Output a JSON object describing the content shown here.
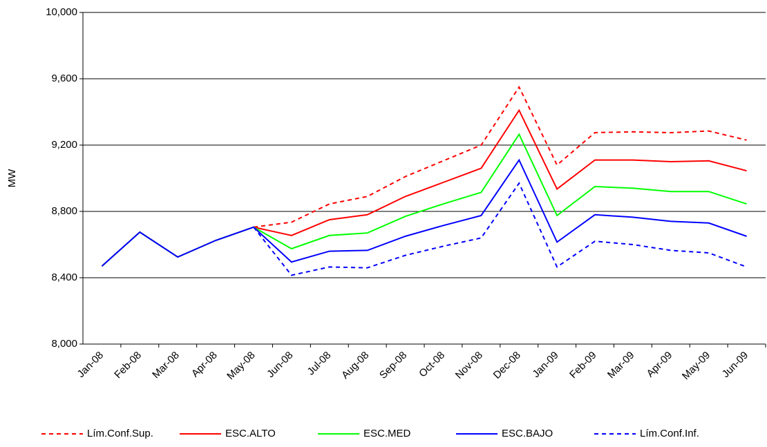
{
  "chart_data": {
    "type": "line",
    "y_label": "MW",
    "categories": [
      "Jan-08",
      "Feb-08",
      "Mar-08",
      "Apr-08",
      "May-08",
      "Jun-08",
      "Jul-08",
      "Aug-08",
      "Sep-08",
      "Oct-08",
      "Nov-08",
      "Dec-08",
      "Jan-09",
      "Feb-09",
      "Mar-09",
      "Apr-09",
      "May-09",
      "Jun-09"
    ],
    "ylim": [
      8000,
      10000
    ],
    "yticks": [
      {
        "value": 8000,
        "label": "8,000"
      },
      {
        "value": 8400,
        "label": "8,400"
      },
      {
        "value": 8800,
        "label": "8,800"
      },
      {
        "value": 9200,
        "label": "9,200"
      },
      {
        "value": 9600,
        "label": "9,600"
      },
      {
        "value": 10000,
        "label": "10,000"
      }
    ],
    "grid": true,
    "legend": "bottom",
    "series": [
      {
        "name": "Lím.Conf.Sup.",
        "color": "#ff0000",
        "dashed": true,
        "values": [
          null,
          null,
          null,
          null,
          8705,
          8735,
          8845,
          8890,
          9010,
          9105,
          9200,
          9550,
          9080,
          9275,
          9280,
          9275,
          9285,
          9230
        ]
      },
      {
        "name": "ESC.ALTO",
        "color": "#ff0000",
        "dashed": false,
        "values": [
          8470,
          8675,
          8525,
          8625,
          8705,
          8655,
          8750,
          8780,
          8890,
          8975,
          9060,
          9410,
          8935,
          9110,
          9110,
          9100,
          9105,
          9045
        ]
      },
      {
        "name": "ESC.MED",
        "color": "#00ff00",
        "dashed": false,
        "values": [
          8470,
          8675,
          8525,
          8625,
          8705,
          8575,
          8655,
          8670,
          8770,
          8845,
          8915,
          9265,
          8775,
          8950,
          8940,
          8920,
          8920,
          8845
        ]
      },
      {
        "name": "ESC.BAJO",
        "color": "#0000ff",
        "dashed": false,
        "values": [
          8470,
          8675,
          8525,
          8625,
          8705,
          8495,
          8560,
          8565,
          8650,
          8715,
          8775,
          9110,
          8615,
          8780,
          8765,
          8740,
          8730,
          8650
        ]
      },
      {
        "name": "Lím.Conf.Inf.",
        "color": "#0000ff",
        "dashed": true,
        "values": [
          null,
          null,
          null,
          null,
          8705,
          8415,
          8465,
          8460,
          8535,
          8590,
          8640,
          8970,
          8465,
          8620,
          8600,
          8565,
          8550,
          8465
        ]
      }
    ]
  }
}
